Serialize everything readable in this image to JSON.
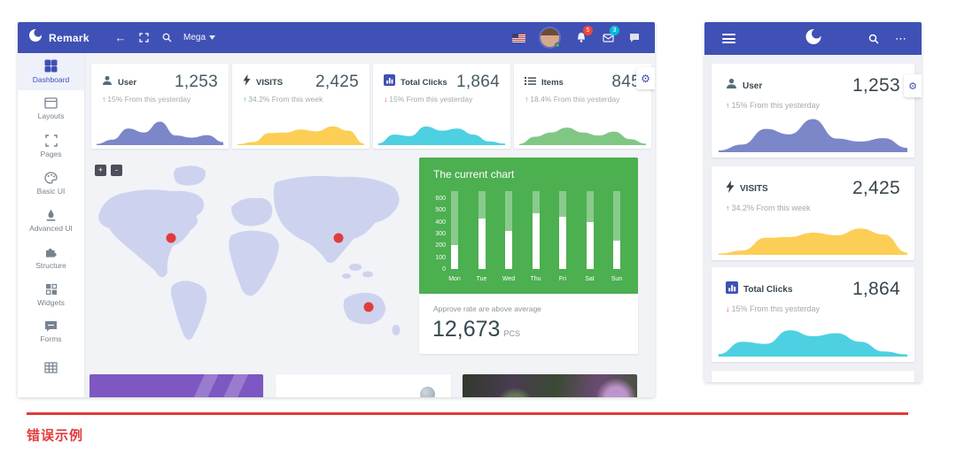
{
  "page": {
    "divider_label": "错误示例"
  },
  "colors": {
    "brand": "#3f51b5",
    "green_panel": "#4caf50",
    "fab": "#00bcd4",
    "up": "#4caf50",
    "down": "#f44336",
    "marker": "#e23b3b",
    "divider": "#e23b3c"
  },
  "icons": {
    "logo": "crescent-circle",
    "back": "arrow-left",
    "expand": "fullscreen-corners",
    "search": "magnifier",
    "caret": "chevron-down",
    "language": "us-flag",
    "notifications": "bell",
    "messages": "envelope",
    "chat": "speech-bubble",
    "settings": "gear",
    "menu": "hamburger",
    "more": "ellipsis"
  },
  "desktop": {
    "navbar": {
      "brand": "Remark",
      "mega_label": "Mega",
      "notif_badge": "5",
      "msg_badge": "3"
    },
    "sidebar": [
      {
        "label": "Dashboard",
        "icon": "dashboard-icon",
        "active": true
      },
      {
        "label": "Layouts",
        "icon": "layouts-icon",
        "active": false
      },
      {
        "label": "Pages",
        "icon": "pages-icon",
        "active": false
      },
      {
        "label": "Basic UI",
        "icon": "basic-ui-icon",
        "active": false
      },
      {
        "label": "Advanced UI",
        "icon": "advanced-ui-icon",
        "active": false
      },
      {
        "label": "Structure",
        "icon": "structure-icon",
        "active": false
      },
      {
        "label": "Widgets",
        "icon": "widgets-icon",
        "active": false
      },
      {
        "label": "Forms",
        "icon": "forms-icon",
        "active": false
      },
      {
        "label": "",
        "icon": "tables-icon",
        "active": false
      }
    ],
    "chart_panel": {
      "title": "The current chart",
      "footer_label": "Approve rate are above average",
      "footer_value": "12,673",
      "footer_unit": "PCS",
      "fab_label": "+"
    },
    "map": {
      "zoom_in": "+",
      "zoom_out": "-",
      "markers": [
        {
          "x": 90,
          "y": 87
        },
        {
          "x": 279,
          "y": 87
        },
        {
          "x": 313,
          "y": 165
        }
      ]
    }
  },
  "cards": [
    {
      "label": "User",
      "value": "1,253",
      "arrow": "↑",
      "trend": "up",
      "delta": "15% From this yesterday",
      "icon": "user-icon"
    },
    {
      "label": "VISITS",
      "value": "2,425",
      "arrow": "↑",
      "trend": "up",
      "delta": "34.2% From this week",
      "icon": "bolt-icon"
    },
    {
      "label": "Total Clicks",
      "value": "1,864",
      "arrow": "↓",
      "trend": "down",
      "delta": "15% From this yesterday",
      "icon": "chart-icon"
    },
    {
      "label": "Items",
      "value": "845",
      "arrow": "↑",
      "trend": "up",
      "delta": "18.4% From this yesterday",
      "icon": "list-icon"
    }
  ],
  "chart_data": [
    {
      "type": "bar",
      "title": "The current chart",
      "categories": [
        "Mon",
        "Tue",
        "Wed",
        "Thu",
        "Fri",
        "Sat",
        "Sun"
      ],
      "values": [
        200,
        430,
        320,
        470,
        445,
        395,
        240
      ],
      "ylim": [
        0,
        600
      ],
      "yticks": [
        600,
        500,
        400,
        300,
        200,
        100,
        0
      ],
      "bar_fill": "#ffffff",
      "bar_track": "rgba(255,255,255,0.35)",
      "xlabel": "",
      "ylabel": "",
      "grid": false,
      "legend": "none"
    },
    {
      "type": "area",
      "name": "user-trend",
      "color": "#7b87c9",
      "values": [
        4,
        18,
        55,
        42,
        78,
        32,
        25,
        33,
        10
      ]
    },
    {
      "type": "area",
      "name": "visits-trend",
      "color": "#fcce55",
      "values": [
        3,
        10,
        40,
        42,
        52,
        46,
        62,
        48,
        5
      ]
    },
    {
      "type": "area",
      "name": "clicks-trend",
      "color": "#4dd0e1",
      "values": [
        6,
        35,
        30,
        62,
        48,
        55,
        35,
        12,
        5
      ]
    },
    {
      "type": "area",
      "name": "items-trend",
      "color": "#81c784",
      "values": [
        4,
        28,
        42,
        58,
        42,
        32,
        45,
        20,
        5
      ]
    }
  ]
}
